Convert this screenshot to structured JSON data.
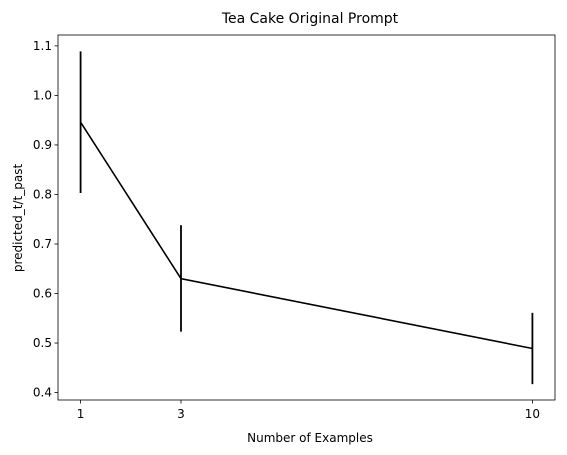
{
  "chart_data": {
    "type": "line",
    "title": "Tea Cake Original Prompt",
    "xlabel": "Number of Examples",
    "ylabel": "predicted_t/t_past",
    "x": [
      1,
      3,
      10
    ],
    "xticks": [
      "1",
      "3",
      "10"
    ],
    "xlim": [
      0.55,
      10.45
    ],
    "ylim": [
      0.385,
      1.122
    ],
    "yticks": [
      "0.4",
      "0.5",
      "0.6",
      "0.7",
      "0.8",
      "0.9",
      "1.0",
      "1.1"
    ],
    "ytick_values": [
      0.4,
      0.5,
      0.6,
      0.7,
      0.8,
      0.9,
      1.0,
      1.1
    ],
    "series": [
      {
        "values": [
          0.946,
          0.63,
          0.489
        ],
        "error_low": [
          0.803,
          0.523,
          0.417
        ],
        "error_high": [
          1.089,
          0.738,
          0.561
        ],
        "color": "#000000"
      }
    ],
    "grid": false,
    "legend": false
  }
}
